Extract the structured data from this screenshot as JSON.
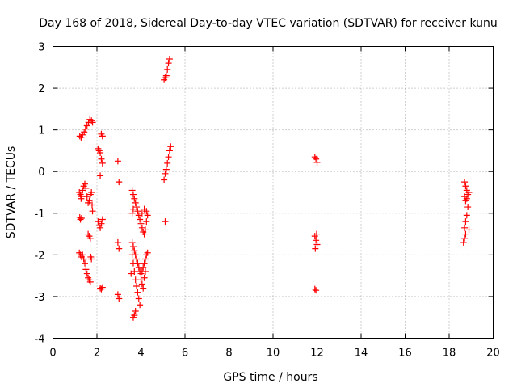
{
  "chart_data": {
    "type": "scatter",
    "title": "Day 168 of 2018, Sidereal Day-to-day VTEC variation (SDTVAR) for receiver kunu",
    "xlabel": "GPS time / hours",
    "ylabel": "SDTVAR / TECUs",
    "xlim": [
      0,
      20
    ],
    "ylim": [
      -4,
      3
    ],
    "xticks": [
      "0",
      "2",
      "4",
      "6",
      "8",
      "10",
      "12",
      "14",
      "16",
      "18",
      "20"
    ],
    "yticks": [
      "3",
      "2",
      "1",
      "0",
      "-1",
      "-2",
      "-3",
      "-4"
    ],
    "grid": true,
    "marker": "+",
    "color": "#ff0000",
    "series": [
      {
        "points": [
          [
            1.22,
            0.85
          ],
          [
            1.28,
            0.82
          ],
          [
            1.35,
            0.88
          ],
          [
            1.42,
            0.95
          ],
          [
            1.48,
            1.02
          ],
          [
            1.55,
            1.1
          ],
          [
            1.62,
            1.18
          ],
          [
            1.68,
            1.25
          ],
          [
            1.75,
            1.22
          ],
          [
            1.8,
            1.18
          ],
          [
            1.2,
            -0.5
          ],
          [
            1.25,
            -0.55
          ],
          [
            1.28,
            -0.65
          ],
          [
            1.3,
            -0.6
          ],
          [
            1.35,
            -0.45
          ],
          [
            1.4,
            -0.35
          ],
          [
            1.45,
            -0.3
          ],
          [
            1.5,
            -0.4
          ],
          [
            1.55,
            -0.6
          ],
          [
            1.6,
            -0.75
          ],
          [
            1.65,
            -0.7
          ],
          [
            1.7,
            -0.55
          ],
          [
            1.75,
            -0.5
          ],
          [
            1.78,
            -0.8
          ],
          [
            1.8,
            -0.95
          ],
          [
            1.22,
            -1.1
          ],
          [
            1.25,
            -1.15
          ],
          [
            1.3,
            -1.12
          ],
          [
            1.2,
            -1.95
          ],
          [
            1.25,
            -2.0
          ],
          [
            1.3,
            -2.05
          ],
          [
            1.35,
            -2.0
          ],
          [
            1.4,
            -2.1
          ],
          [
            1.45,
            -2.2
          ],
          [
            1.5,
            -2.35
          ],
          [
            1.55,
            -2.45
          ],
          [
            1.6,
            -2.55
          ],
          [
            1.65,
            -2.6
          ],
          [
            1.7,
            -2.65
          ],
          [
            1.72,
            -2.05
          ],
          [
            1.75,
            -2.1
          ],
          [
            1.6,
            -1.5
          ],
          [
            1.65,
            -1.55
          ],
          [
            1.7,
            -1.6
          ],
          [
            2.05,
            0.55
          ],
          [
            2.1,
            0.5
          ],
          [
            2.15,
            0.45
          ],
          [
            2.2,
            0.9
          ],
          [
            2.25,
            0.85
          ],
          [
            2.2,
            0.3
          ],
          [
            2.25,
            0.2
          ],
          [
            2.15,
            -0.1
          ],
          [
            2.05,
            -1.2
          ],
          [
            2.1,
            -1.3
          ],
          [
            2.15,
            -1.35
          ],
          [
            2.2,
            -1.25
          ],
          [
            2.25,
            -1.15
          ],
          [
            2.15,
            -2.8
          ],
          [
            2.2,
            -2.82
          ],
          [
            2.25,
            -2.78
          ],
          [
            2.95,
            0.25
          ],
          [
            3.0,
            -0.25
          ],
          [
            2.95,
            -1.7
          ],
          [
            3.0,
            -1.85
          ],
          [
            2.95,
            -2.95
          ],
          [
            3.0,
            -3.05
          ],
          [
            3.6,
            -0.45
          ],
          [
            3.65,
            -0.55
          ],
          [
            3.7,
            -0.65
          ],
          [
            3.75,
            -0.75
          ],
          [
            3.8,
            -0.85
          ],
          [
            3.85,
            -0.95
          ],
          [
            3.9,
            -1.05
          ],
          [
            3.95,
            -1.15
          ],
          [
            4.0,
            -1.25
          ],
          [
            4.05,
            -1.35
          ],
          [
            4.1,
            -1.45
          ],
          [
            4.15,
            -1.5
          ],
          [
            4.2,
            -1.4
          ],
          [
            4.25,
            -1.2
          ],
          [
            4.3,
            -1.05
          ],
          [
            4.25,
            -0.95
          ],
          [
            4.15,
            -0.9
          ],
          [
            4.05,
            -1.0
          ],
          [
            3.6,
            -1.7
          ],
          [
            3.65,
            -1.8
          ],
          [
            3.7,
            -1.9
          ],
          [
            3.75,
            -2.0
          ],
          [
            3.8,
            -2.1
          ],
          [
            3.85,
            -2.2
          ],
          [
            3.9,
            -2.3
          ],
          [
            3.95,
            -2.4
          ],
          [
            4.0,
            -2.45
          ],
          [
            4.05,
            -2.4
          ],
          [
            4.1,
            -2.3
          ],
          [
            4.15,
            -2.2
          ],
          [
            4.2,
            -2.1
          ],
          [
            4.25,
            -2.0
          ],
          [
            4.3,
            -1.95
          ],
          [
            3.6,
            -2.0
          ],
          [
            3.65,
            -2.2
          ],
          [
            3.7,
            -2.4
          ],
          [
            3.75,
            -2.6
          ],
          [
            3.8,
            -2.75
          ],
          [
            3.85,
            -2.9
          ],
          [
            3.9,
            -3.05
          ],
          [
            3.95,
            -3.2
          ],
          [
            3.75,
            -3.35
          ],
          [
            3.7,
            -3.45
          ],
          [
            3.65,
            -3.5
          ],
          [
            4.0,
            -2.6
          ],
          [
            4.05,
            -2.7
          ],
          [
            4.1,
            -2.8
          ],
          [
            4.15,
            -2.55
          ],
          [
            4.2,
            -2.4
          ],
          [
            3.6,
            -1.0
          ],
          [
            3.65,
            -0.9
          ],
          [
            3.55,
            -2.45
          ],
          [
            5.05,
            2.2
          ],
          [
            5.1,
            2.25
          ],
          [
            5.15,
            2.3
          ],
          [
            5.2,
            2.45
          ],
          [
            5.25,
            2.6
          ],
          [
            5.3,
            2.7
          ],
          [
            5.05,
            -0.2
          ],
          [
            5.1,
            -0.05
          ],
          [
            5.15,
            0.05
          ],
          [
            5.2,
            0.2
          ],
          [
            5.25,
            0.35
          ],
          [
            5.3,
            0.5
          ],
          [
            5.35,
            0.6
          ],
          [
            5.1,
            -1.2
          ],
          [
            11.9,
            0.35
          ],
          [
            11.95,
            0.3
          ],
          [
            12.0,
            0.22
          ],
          [
            11.9,
            -1.55
          ],
          [
            11.95,
            -1.65
          ],
          [
            12.0,
            -1.75
          ],
          [
            11.92,
            -1.85
          ],
          [
            11.98,
            -1.5
          ],
          [
            11.9,
            -2.82
          ],
          [
            11.95,
            -2.85
          ],
          [
            18.7,
            -0.25
          ],
          [
            18.75,
            -0.35
          ],
          [
            18.8,
            -0.45
          ],
          [
            18.85,
            -0.55
          ],
          [
            18.9,
            -0.5
          ],
          [
            18.7,
            -0.6
          ],
          [
            18.75,
            -0.7
          ],
          [
            18.8,
            -0.65
          ],
          [
            18.85,
            -0.85
          ],
          [
            18.8,
            -1.05
          ],
          [
            18.75,
            -1.2
          ],
          [
            18.7,
            -1.35
          ],
          [
            18.75,
            -1.5
          ],
          [
            18.7,
            -1.6
          ],
          [
            18.65,
            -1.7
          ],
          [
            18.9,
            -1.4
          ]
        ]
      }
    ]
  }
}
